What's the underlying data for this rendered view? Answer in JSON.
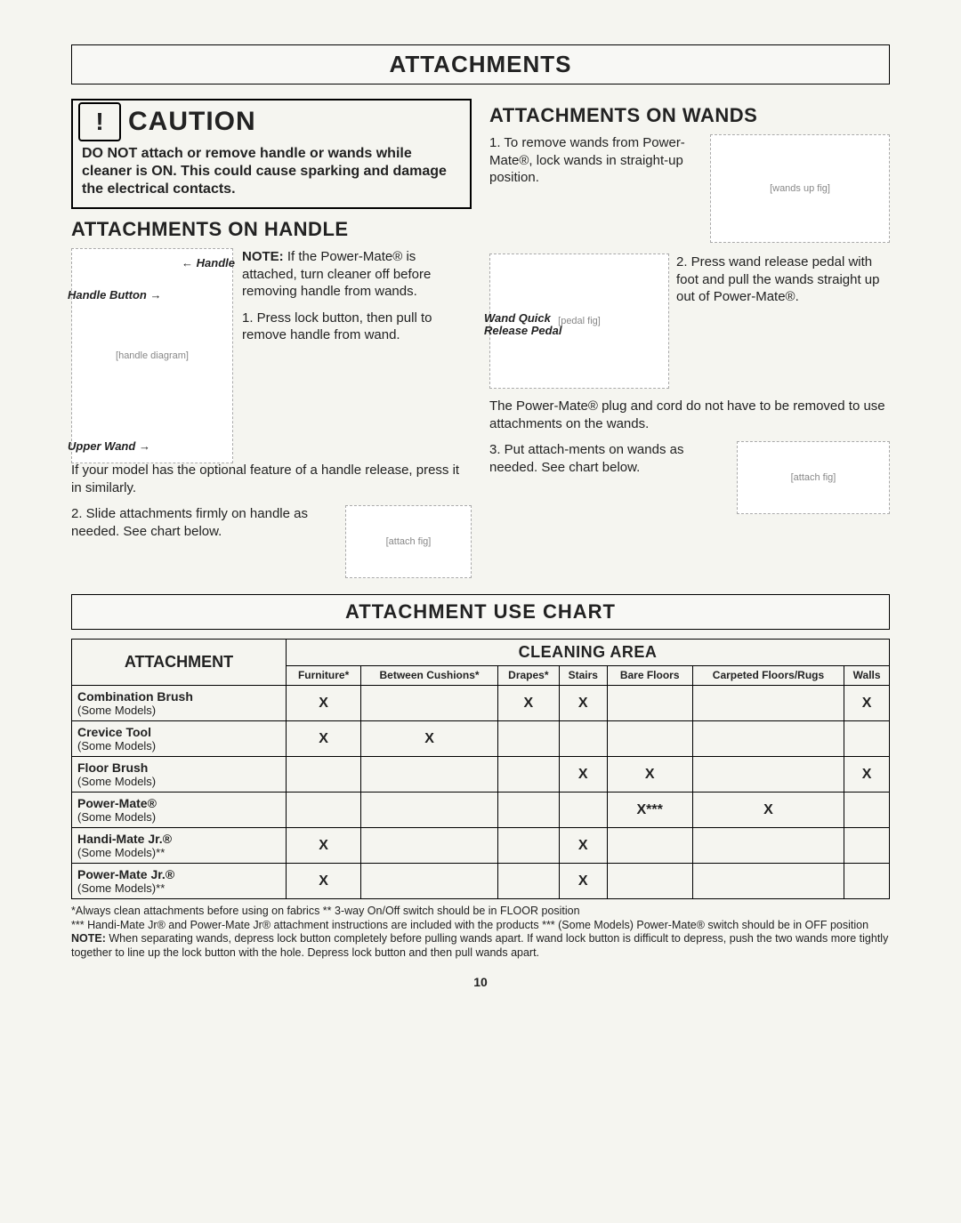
{
  "page": {
    "title": "ATTACHMENTS",
    "number": "10"
  },
  "caution": {
    "title": "CAUTION",
    "body": "DO NOT attach or remove handle or wands while cleaner is ON. This could cause sparking and damage the electrical contacts."
  },
  "left": {
    "heading": "ATTACHMENTS ON HANDLE",
    "labels": {
      "handle": "Handle",
      "handle_button": "Handle Button",
      "upper_wand": "Upper Wand"
    },
    "note": "NOTE: If the Power-Mate® is attached, turn cleaner off before removing handle from wands.",
    "step1": "1. Press lock button, then pull to remove handle from wand.",
    "optional": "If your model has the optional feature of a handle release, press it in similarly.",
    "step2": "2. Slide attachments firmly on handle as needed. See chart below."
  },
  "right": {
    "heading": "ATTACHMENTS ON WANDS",
    "step1": "1. To remove wands from Power-Mate®, lock wands in straight-up position.",
    "step2": "2. Press wand release pedal with foot and pull the wands straight up out of Power-Mate®.",
    "pedal_label": "Wand Quick Release Pedal",
    "mid": "The Power-Mate® plug and cord do not have to be removed to use attachments on the wands.",
    "step3": "3. Put attach-ments on wands as needed. See chart below."
  },
  "chart": {
    "title": "ATTACHMENT USE CHART",
    "area_head": "CLEANING AREA",
    "att_head": "ATTACHMENT",
    "columns": [
      "Furniture*",
      "Between Cushions*",
      "Drapes*",
      "Stairs",
      "Bare Floors",
      "Carpeted Floors/Rugs",
      "Walls"
    ],
    "rows": [
      {
        "name": "Combination Brush",
        "sub": "(Some Models)",
        "cells": [
          "X",
          "",
          "X",
          "X",
          "",
          "",
          "X"
        ]
      },
      {
        "name": "Crevice Tool",
        "sub": "(Some Models)",
        "cells": [
          "X",
          "X",
          "",
          "",
          "",
          "",
          ""
        ]
      },
      {
        "name": "Floor Brush",
        "sub": "(Some Models)",
        "cells": [
          "",
          "",
          "",
          "X",
          "X",
          "",
          "X"
        ]
      },
      {
        "name": "Power-Mate®",
        "sub": "(Some Models)",
        "cells": [
          "",
          "",
          "",
          "",
          "X***",
          "X",
          ""
        ]
      },
      {
        "name": "Handi-Mate Jr.®",
        "sub": "(Some Models)**",
        "cells": [
          "X",
          "",
          "",
          "X",
          "",
          "",
          ""
        ]
      },
      {
        "name": "Power-Mate Jr.®",
        "sub": "(Some Models)**",
        "cells": [
          "X",
          "",
          "",
          "X",
          "",
          "",
          ""
        ]
      }
    ]
  },
  "footnotes": {
    "l1": "*Always clean attachments before using on fabrics   ** 3-way On/Off switch should be in FLOOR position",
    "l2": "*** Handi-Mate Jr® and Power-Mate Jr® attachment instructions are included with the products   *** (Some Models) Power-Mate® switch should be in OFF position",
    "note": "NOTE: When separating wands, depress lock button completely before pulling wands apart. If wand lock button is difficult to depress, push the two wands more tightly together to line up the lock button with the hole. Depress lock button and then pull wands apart."
  }
}
